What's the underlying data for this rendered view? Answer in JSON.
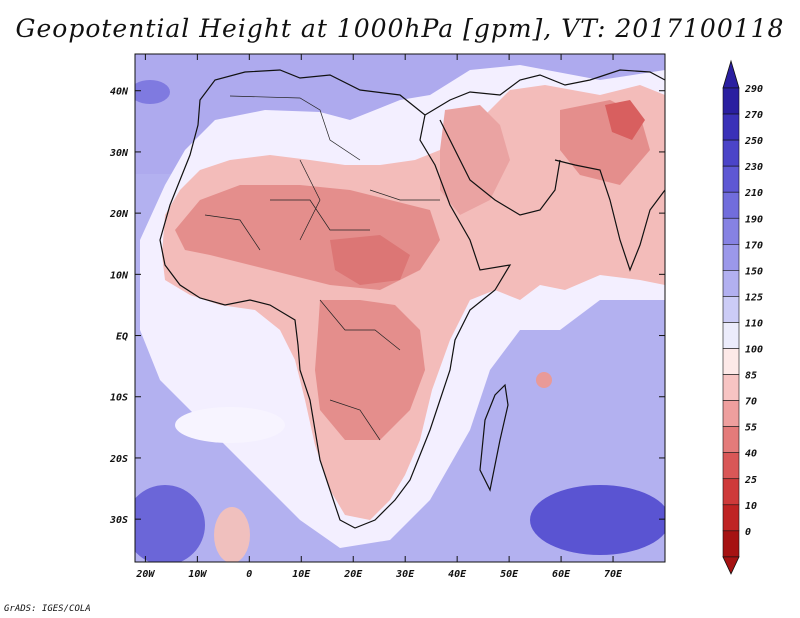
{
  "title": "Geopotential Height at 1000hPa [gpm], VT: 2017100118",
  "footer": "GrADS: IGES/COLA",
  "colors": {
    "background": "#ffffff",
    "ocean_north": "#a8a4ee",
    "ocean_south": "#b4b2f0",
    "land_pink": "#f2b7b4",
    "land_red": "#e07c7a"
  },
  "map": {
    "projection": "lat-lon",
    "lon_range": [
      -22,
      80
    ],
    "lat_range": [
      -37,
      46
    ],
    "x_ticks": [
      "20W",
      "10W",
      "0",
      "10E",
      "20E",
      "30E",
      "40E",
      "50E",
      "60E",
      "70E"
    ],
    "y_ticks": [
      "40N",
      "30N",
      "20N",
      "10N",
      "EQ",
      "10S",
      "20S",
      "30S"
    ]
  },
  "colorbar": {
    "labels": [
      "290",
      "270",
      "250",
      "230",
      "210",
      "190",
      "170",
      "150",
      "125",
      "110",
      "100",
      "85",
      "70",
      "55",
      "40",
      "25",
      "10",
      "0"
    ],
    "colors": [
      "#2a1fa0",
      "#3a31b8",
      "#4b44c8",
      "#5e58d4",
      "#716ddc",
      "#8682e3",
      "#9b98ea",
      "#b2b0f0",
      "#ccccf6",
      "#ececfb",
      "#fde9e8",
      "#f7c4c3",
      "#ee9f9e",
      "#e47b7a",
      "#d95757",
      "#ce3a3a",
      "#bf2323",
      "#a61212"
    ]
  }
}
